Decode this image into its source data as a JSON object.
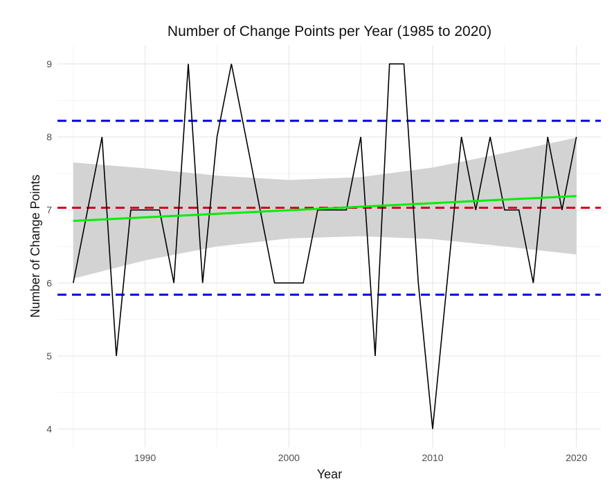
{
  "chart_data": {
    "type": "line",
    "title": "Number of Change Points per Year (1985 to 2020)",
    "xlabel": "Year",
    "ylabel": "Number of Change Points",
    "xlim": [
      1983.9,
      2021.7
    ],
    "ylim": [
      3.75,
      9.25
    ],
    "xticks": [
      1990,
      2000,
      2010,
      2020
    ],
    "xtick_labels": [
      "1990",
      "2000",
      "2010",
      "2020"
    ],
    "yticks": [
      4,
      5,
      6,
      7,
      8,
      9
    ],
    "ytick_labels": [
      "4",
      "5",
      "6",
      "7",
      "8",
      "9"
    ],
    "grid": true,
    "legend": "none",
    "series": [
      {
        "x": [
          1985,
          1986,
          1987,
          1988,
          1989,
          1990,
          1991,
          1992,
          1993,
          1994,
          1995,
          1996,
          1997,
          1998,
          1999,
          2000,
          2001,
          2002,
          2003,
          2004,
          2005,
          2006,
          2007,
          2008,
          2009,
          2010,
          2011,
          2012,
          2013,
          2014,
          2015,
          2016,
          2017,
          2018,
          2019,
          2020
        ],
        "values": [
          6,
          7,
          8,
          5,
          7,
          7,
          7,
          6,
          9,
          6,
          8,
          9,
          8,
          7,
          6,
          6,
          6,
          7,
          7,
          7,
          8,
          5,
          9,
          9,
          6,
          4,
          6,
          8,
          7,
          8,
          7,
          7,
          6,
          8,
          7,
          8
        ],
        "color": "#000000"
      }
    ],
    "trend_line": {
      "x": [
        1985,
        2020
      ],
      "values": [
        6.85,
        7.19
      ],
      "color": "#00ee00"
    },
    "confidence_band": {
      "x": [
        1985,
        1990,
        1995,
        2000,
        2005,
        2010,
        2015,
        2020
      ],
      "lower": [
        6.06,
        6.31,
        6.5,
        6.61,
        6.64,
        6.6,
        6.5,
        6.39
      ],
      "upper": [
        7.65,
        7.57,
        7.47,
        7.41,
        7.45,
        7.58,
        7.78,
        7.99
      ],
      "color": "#d3d3d3"
    },
    "reference_lines": [
      {
        "y": 7.03,
        "color": "#d0021b",
        "style": "dashed"
      },
      {
        "y": 8.22,
        "color": "#0000dd",
        "style": "dashed"
      },
      {
        "y": 5.84,
        "color": "#0000dd",
        "style": "dashed"
      }
    ]
  }
}
